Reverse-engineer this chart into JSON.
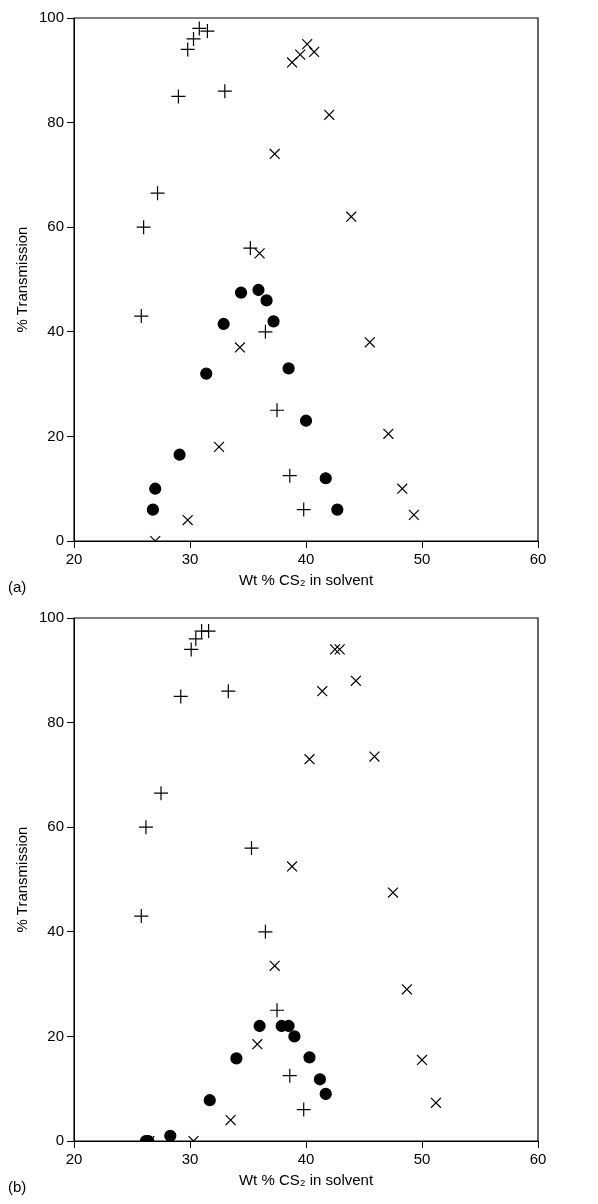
{
  "chart_data": [
    {
      "type": "scatter",
      "xlabel": "Wt % CS₂ in solvent",
      "ylabel": "% Transmission",
      "xlim": [
        20,
        60
      ],
      "xticks": [
        20,
        30,
        40,
        50,
        60
      ],
      "ylim": [
        0,
        100
      ],
      "yticks": [
        0,
        20,
        40,
        60,
        80,
        100
      ],
      "grid": false,
      "legend": false,
      "annotations": [
        "(a)"
      ],
      "series": [
        {
          "color": "#000000",
          "marker": "plus",
          "x": [
            30.8,
            31.5,
            30.3,
            29.8,
            29,
            33,
            27.2,
            26,
            25.8,
            35.2,
            36.5,
            37.5,
            38.6,
            39.8
          ],
          "values": [
            98,
            97.5,
            96,
            94,
            85,
            86,
            66.5,
            60,
            43,
            56,
            40,
            25,
            12.5,
            6
          ]
        },
        {
          "color": "#000000",
          "marker": "x",
          "x": [
            27,
            29.8,
            32.5,
            34.3,
            36,
            37.3,
            38.8,
            39.5,
            40.1,
            40.7,
            42,
            43.9,
            45.5,
            47.1,
            48.3,
            49.3
          ],
          "values": [
            0,
            4,
            18,
            37,
            55,
            74,
            91.5,
            93,
            95,
            93.5,
            81.5,
            62,
            38,
            20.5,
            10,
            5
          ]
        },
        {
          "color": "#000000",
          "marker": "circle",
          "x": [
            26.8,
            27,
            29.1,
            31.4,
            32.9,
            34.4,
            35.9,
            36.6,
            37.2,
            38.5,
            40,
            41.7,
            42.7
          ],
          "values": [
            6,
            10,
            16.5,
            32,
            41.5,
            47.5,
            48,
            46,
            42,
            33,
            23,
            12,
            6
          ]
        }
      ]
    },
    {
      "type": "scatter",
      "xlabel": "Wt % CS₂ in solvent",
      "ylabel": "% Transmission",
      "xlim": [
        20,
        60
      ],
      "xticks": [
        20,
        30,
        40,
        50,
        60
      ],
      "ylim": [
        0,
        100
      ],
      "yticks": [
        0,
        20,
        40,
        60,
        80,
        100
      ],
      "grid": false,
      "legend": false,
      "annotations": [
        "(b)"
      ],
      "series": [
        {
          "color": "#000000",
          "marker": "plus",
          "x": [
            30.1,
            30.5,
            31,
            31.6,
            29.2,
            33.3,
            27.5,
            26.2,
            25.8,
            35.3,
            36.5,
            37.5,
            38.6,
            39.8
          ],
          "values": [
            94,
            96,
            97.5,
            97.5,
            85,
            86,
            66.5,
            60,
            43,
            56,
            40,
            25,
            12.5,
            6
          ]
        },
        {
          "color": "#000000",
          "marker": "x",
          "x": [
            26.5,
            30.3,
            33.5,
            35.8,
            37.3,
            38.8,
            40.3,
            41.4,
            42.5,
            42.9,
            44.3,
            45.9,
            47.5,
            48.7,
            50,
            51.2
          ],
          "values": [
            0,
            0,
            4,
            18.5,
            33.5,
            52.5,
            73,
            86,
            94,
            94,
            88,
            73.5,
            47.5,
            29,
            15.5,
            7.3
          ]
        },
        {
          "color": "#000000",
          "marker": "circle",
          "x": [
            26.2,
            26.4,
            28.3,
            31.7,
            34,
            36,
            37.9,
            38.5,
            39,
            40.3,
            41.2,
            41.7
          ],
          "values": [
            0,
            0,
            1,
            7.8,
            15.8,
            22,
            22,
            22,
            20,
            16,
            11.8,
            9
          ]
        }
      ]
    }
  ]
}
